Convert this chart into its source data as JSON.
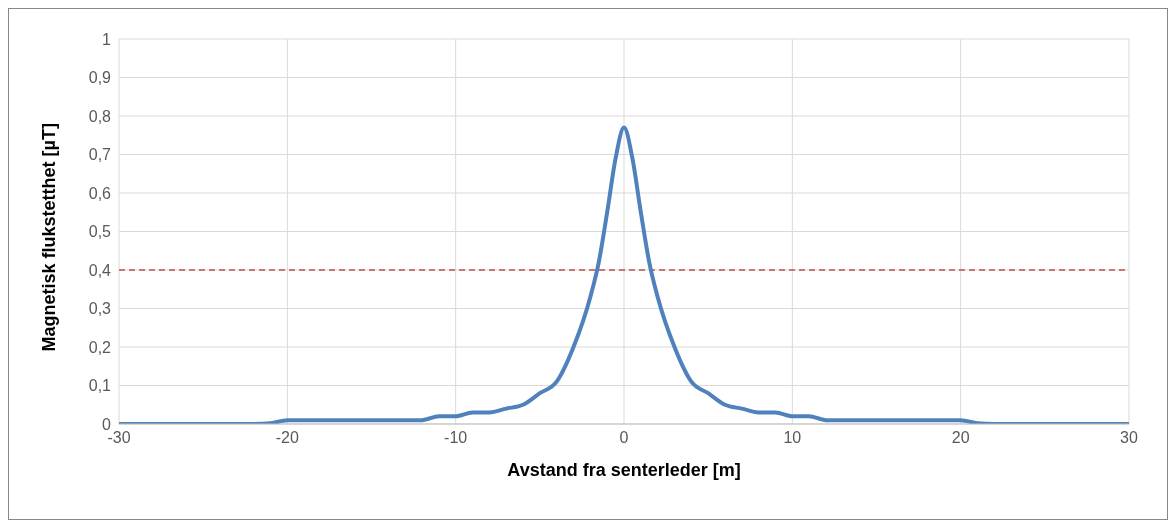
{
  "chart_data": {
    "type": "line",
    "xlabel": "Avstand fra senterleder [m]",
    "ylabel": "Magnetisk flukstetthet [µT]",
    "x": [
      -30,
      -22,
      -21,
      -20,
      -19,
      -12,
      -11,
      -10,
      -9,
      -8,
      -7,
      -6,
      -5,
      -4,
      -3,
      -2,
      -1.5,
      -1,
      -0.5,
      0,
      0.5,
      1,
      1.5,
      2,
      3,
      4,
      5,
      6,
      7,
      8,
      9,
      10,
      11,
      12,
      19,
      20,
      21,
      22,
      30
    ],
    "series": [
      {
        "color": "#4f81bd",
        "values": [
          0,
          0,
          0.002,
          0.01,
          0.01,
          0.01,
          0.02,
          0.02,
          0.03,
          0.03,
          0.04,
          0.05,
          0.08,
          0.11,
          0.2,
          0.33,
          0.42,
          0.55,
          0.69,
          0.77,
          0.69,
          0.55,
          0.42,
          0.33,
          0.2,
          0.11,
          0.08,
          0.05,
          0.04,
          0.03,
          0.03,
          0.02,
          0.02,
          0.01,
          0.01,
          0.01,
          0.002,
          0,
          0
        ]
      }
    ],
    "xlim": [
      -30,
      30
    ],
    "xticks": [
      -30,
      -20,
      -10,
      0,
      10,
      20,
      30
    ],
    "ylim": [
      0,
      1
    ],
    "yticks": [
      {
        "value": 0,
        "label": "0"
      },
      {
        "value": 0.1,
        "label": "0,1"
      },
      {
        "value": 0.2,
        "label": "0,2"
      },
      {
        "value": 0.3,
        "label": "0,3"
      },
      {
        "value": 0.4,
        "label": "0,4"
      },
      {
        "value": 0.5,
        "label": "0,5"
      },
      {
        "value": 0.6,
        "label": "0,6"
      },
      {
        "value": 0.7,
        "label": "0,7"
      },
      {
        "value": 0.8,
        "label": "0,8"
      },
      {
        "value": 0.9,
        "label": "0,9"
      },
      {
        "value": 1,
        "label": "1"
      }
    ],
    "ref_lines": [
      {
        "axis": "y",
        "value": 0.4,
        "color": "#c0504d",
        "line_style": "dashed"
      }
    ],
    "grid": true,
    "marker": "none",
    "line_style": "solid"
  }
}
